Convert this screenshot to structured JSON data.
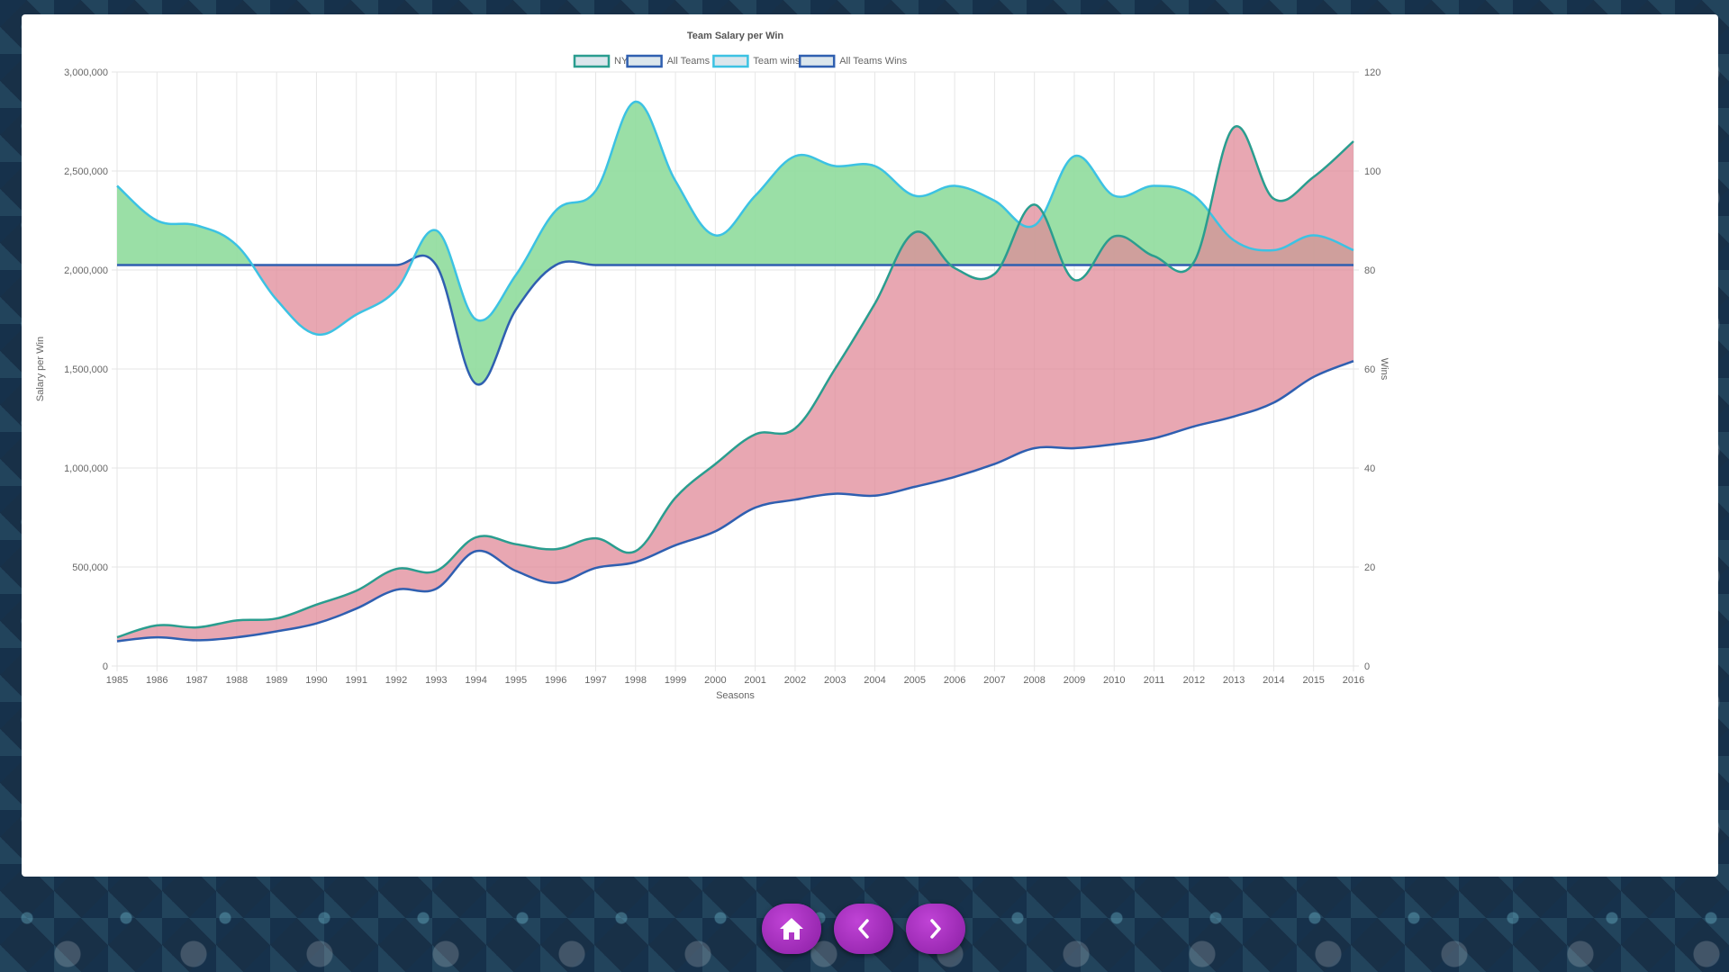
{
  "nav": {
    "buttons": [
      {
        "name": "home-button",
        "icon": "home-icon"
      },
      {
        "name": "previous-button",
        "icon": "chevron-left-icon"
      },
      {
        "name": "next-button",
        "icon": "chevron-right-icon"
      }
    ],
    "color": "#a52fbf"
  },
  "chart_data": {
    "type": "line",
    "title": "Team Salary per Win",
    "xlabel": "Seasons",
    "ylabel": "Salary per Win",
    "y2label": "Wins",
    "ylim": [
      0,
      3000000
    ],
    "y2lim": [
      0,
      120
    ],
    "yticks": [
      "0",
      "500,000",
      "1,000,000",
      "1,500,000",
      "2,000,000",
      "2,500,000",
      "3,000,000"
    ],
    "y2ticks": [
      "0",
      "20",
      "40",
      "60",
      "80",
      "100",
      "120"
    ],
    "grid": true,
    "legend_position": "top",
    "x": [
      "1985",
      "1986",
      "1987",
      "1988",
      "1989",
      "1990",
      "1991",
      "1992",
      "1993",
      "1994",
      "1995",
      "1996",
      "1997",
      "1998",
      "1999",
      "2000",
      "2001",
      "2002",
      "2003",
      "2004",
      "2005",
      "2006",
      "2007",
      "2008",
      "2009",
      "2010",
      "2011",
      "2012",
      "2013",
      "2014",
      "2015",
      "2016"
    ],
    "series": [
      {
        "name": "NYA",
        "axis": "left",
        "color": "#2a9d8f",
        "values": [
          145000,
          205000,
          195000,
          230000,
          240000,
          310000,
          380000,
          490000,
          480000,
          650000,
          615000,
          590000,
          645000,
          580000,
          850000,
          1020000,
          1170000,
          1200000,
          1500000,
          1830000,
          2190000,
          2010000,
          1980000,
          2330000,
          1950000,
          2170000,
          2070000,
          2040000,
          2720000,
          2360000,
          2470000,
          2650000
        ]
      },
      {
        "name": "All Teams",
        "axis": "left",
        "color": "#2f5fb0",
        "values": [
          125000,
          145000,
          130000,
          145000,
          175000,
          215000,
          290000,
          385000,
          390000,
          580000,
          480000,
          420000,
          495000,
          525000,
          610000,
          680000,
          800000,
          840000,
          870000,
          860000,
          905000,
          955000,
          1020000,
          1100000,
          1100000,
          1120000,
          1150000,
          1210000,
          1260000,
          1330000,
          1460000,
          1540000
        ]
      },
      {
        "name": "Team wins",
        "axis": "right",
        "color": "#3cc2e3",
        "values": [
          97,
          90,
          89,
          85,
          74,
          67,
          71,
          76,
          88,
          70,
          79,
          92,
          96,
          114,
          98,
          87,
          95,
          103,
          101,
          101,
          95,
          97,
          94,
          89,
          103,
          95,
          97,
          95,
          86,
          84,
          87,
          84
        ]
      },
      {
        "name": "All Teams Wins",
        "axis": "right",
        "color": "#2f5fb0",
        "values": [
          81,
          81,
          81,
          81,
          81,
          81,
          81,
          81,
          81,
          57,
          72,
          81,
          81,
          81,
          81,
          81,
          81,
          81,
          81,
          81,
          81,
          81,
          81,
          81,
          81,
          81,
          81,
          81,
          81,
          81,
          81,
          81
        ]
      }
    ],
    "fills": {
      "above": "#8fdc9c",
      "below": "#e08a98"
    }
  }
}
